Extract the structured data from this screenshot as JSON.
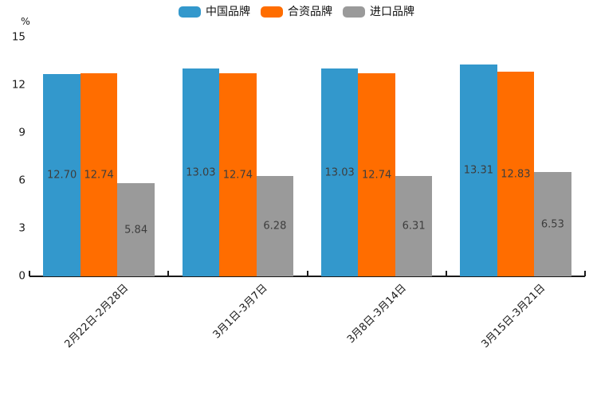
{
  "chart_data": {
    "type": "bar",
    "title": "",
    "unit_label": "%",
    "categories": [
      "2月22日-2月28日",
      "3月1日-3月7日",
      "3月8日-3月14日",
      "3月15日-3月21日"
    ],
    "series": [
      {
        "name": "中国品牌",
        "color": "#3398CC",
        "values": [
          12.7,
          13.03,
          13.03,
          13.31
        ]
      },
      {
        "name": "合资品牌",
        "color": "#FF6D00",
        "values": [
          12.74,
          12.74,
          12.74,
          12.83
        ]
      },
      {
        "name": "进口品牌",
        "color": "#9A9A9A",
        "values": [
          5.84,
          6.28,
          6.31,
          6.53
        ]
      }
    ],
    "ylim": [
      0,
      15
    ],
    "yticks": [
      0,
      3,
      6,
      9,
      12,
      15
    ],
    "grid": false,
    "legend_position": "top",
    "value_labels": "inside-middle",
    "value_label_decimals": 2,
    "axis_color": "#1a1a1a",
    "value_label_color": "#3d3d3d"
  }
}
